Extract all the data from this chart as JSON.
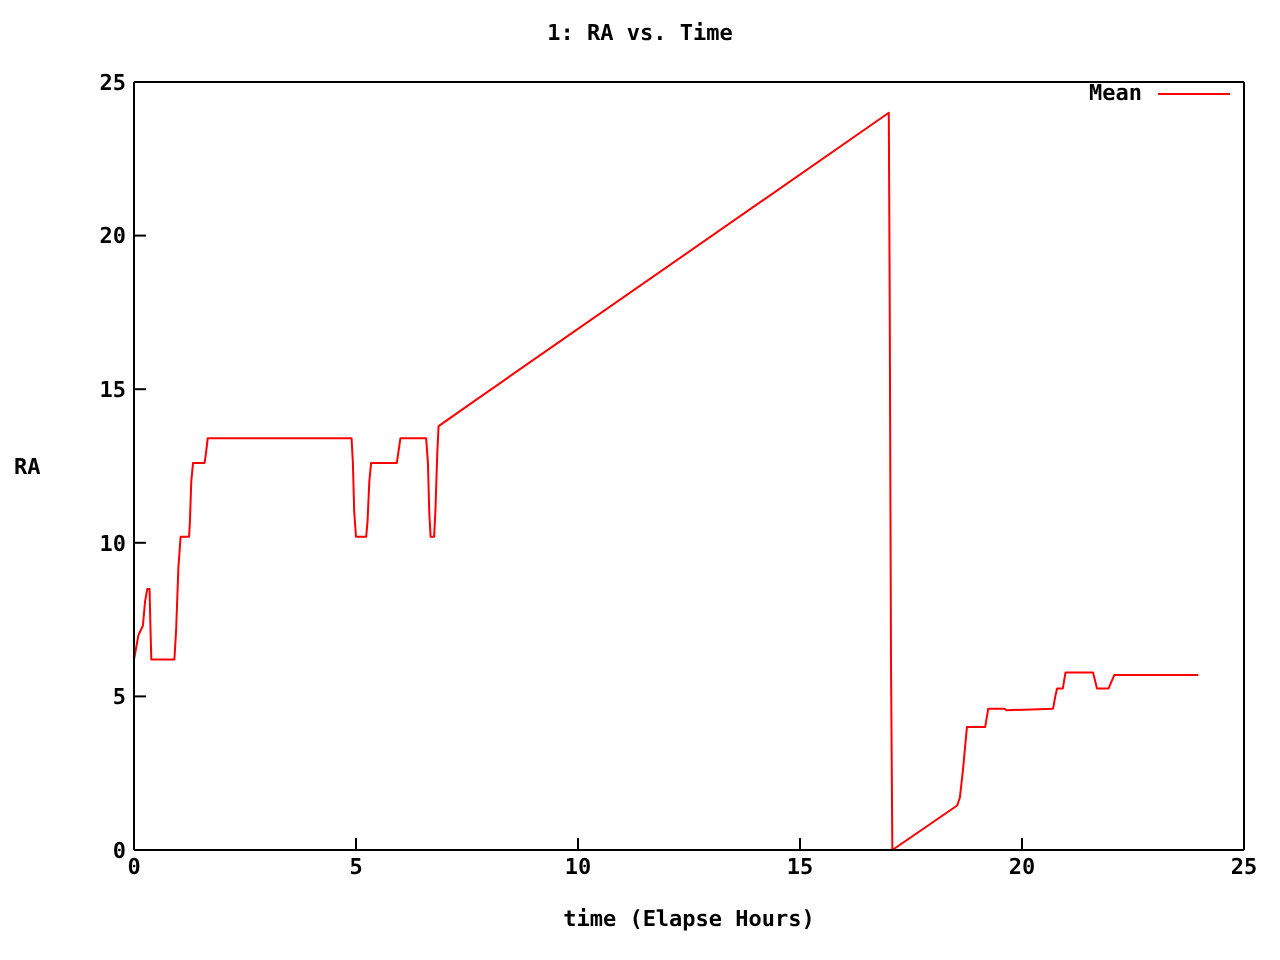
{
  "chart_data": {
    "type": "line",
    "title": "1: RA vs. Time",
    "xlabel": "time (Elapse Hours)",
    "ylabel": "RA",
    "xlim": [
      0,
      25
    ],
    "xticks": [
      0,
      5,
      10,
      15,
      20,
      25
    ],
    "ylim": [
      0,
      25
    ],
    "yticks": [
      0,
      5,
      10,
      15,
      20,
      25
    ],
    "legend": "top right",
    "marker": "none",
    "line_style": "solid",
    "series": [
      {
        "name": "Mean",
        "color": "#ff0000",
        "x": [
          0,
          0.05,
          0.1,
          0.2,
          0.25,
          0.3,
          0.35,
          0.37,
          0.39,
          0.91,
          0.95,
          1.0,
          1.05,
          1.24,
          1.26,
          1.29,
          1.33,
          1.59,
          1.62,
          1.66,
          4.9,
          4.93,
          4.96,
          5.0,
          5.23,
          5.26,
          5.3,
          5.34,
          5.92,
          5.95,
          6.0,
          6.58,
          6.62,
          6.65,
          6.68,
          6.76,
          6.79,
          6.83,
          6.86,
          7.55,
          17.0,
          17.02,
          17.05,
          17.08,
          18.54,
          18.6,
          18.67,
          18.76,
          19.17,
          19.24,
          19.6,
          19.65,
          20.7,
          20.75,
          20.79,
          20.92,
          20.98,
          21.6,
          21.69,
          21.95,
          22.08,
          23.97
        ],
        "values": [
          6.2,
          6.6,
          7.0,
          7.3,
          8.1,
          8.5,
          8.5,
          7.3,
          6.2,
          6.2,
          7.2,
          9.2,
          10.2,
          10.2,
          10.7,
          12.0,
          12.6,
          12.6,
          12.9,
          13.4,
          13.4,
          12.6,
          11.0,
          10.2,
          10.2,
          10.7,
          12.0,
          12.6,
          12.6,
          12.9,
          13.4,
          13.4,
          12.6,
          11.0,
          10.2,
          10.2,
          11.1,
          12.9,
          13.8,
          14.5,
          24.0,
          18.1,
          6.0,
          0,
          1.45,
          1.7,
          2.6,
          4.0,
          4.0,
          4.6,
          4.6,
          4.55,
          4.6,
          5.0,
          5.26,
          5.26,
          5.78,
          5.78,
          5.26,
          5.26,
          5.7,
          5.7
        ]
      }
    ]
  }
}
